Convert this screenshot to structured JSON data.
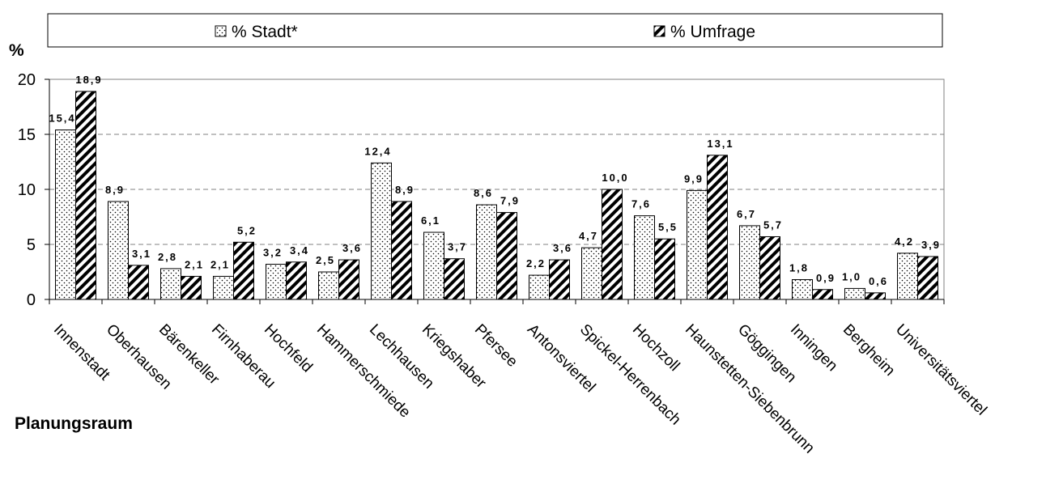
{
  "chart_data": {
    "type": "bar",
    "categories": [
      "Innenstadt",
      "Oberhausen",
      "Bärenkeller",
      "Firnhaberau",
      "Hochfeld",
      "Hammerschmiede",
      "Lechhausen",
      "Kriegshaber",
      "Pfersee",
      "Antonsviertel",
      "Spickel-Herrenbach",
      "Hochzoll",
      "Haunstetten-Siebenbrunn",
      "Göggingen",
      "Inningen",
      "Bergheim",
      "Universitätsviertel"
    ],
    "series": [
      {
        "name": "% Stadt*",
        "values": [
          15.4,
          8.9,
          2.8,
          2.1,
          3.2,
          2.5,
          12.4,
          6.1,
          8.6,
          2.2,
          4.7,
          7.6,
          9.9,
          6.7,
          1.8,
          1.0,
          4.2
        ],
        "labels": [
          "15,4",
          "8,9",
          "2,8",
          "2,1",
          "3,2",
          "2,5",
          "12,4",
          "6,1",
          "8,6",
          "2,2",
          "4,7",
          "7,6",
          "9,9",
          "6,7",
          "1,8",
          "1,0",
          "4,2"
        ],
        "pattern": "dots"
      },
      {
        "name": "% Umfrage",
        "values": [
          18.9,
          3.1,
          2.1,
          5.2,
          3.4,
          3.6,
          8.9,
          3.7,
          7.9,
          3.6,
          10.0,
          5.5,
          13.1,
          5.7,
          0.9,
          0.6,
          3.9
        ],
        "labels": [
          "18,9",
          "3,1",
          "2,1",
          "5,2",
          "3,4",
          "3,6",
          "8,9",
          "3,7",
          "7,9",
          "3,6",
          "10,0",
          "5,5",
          "13,1",
          "5,7",
          "0,9",
          "0,6",
          "3,9"
        ],
        "pattern": "diagonal-stripes"
      }
    ],
    "ylabel": "%",
    "xlabel": "Planungsraum",
    "ylim": [
      0,
      20
    ],
    "yticks": [
      0,
      5,
      10,
      15,
      20
    ],
    "grid": "horizontal dashed",
    "legend_position": "top"
  }
}
